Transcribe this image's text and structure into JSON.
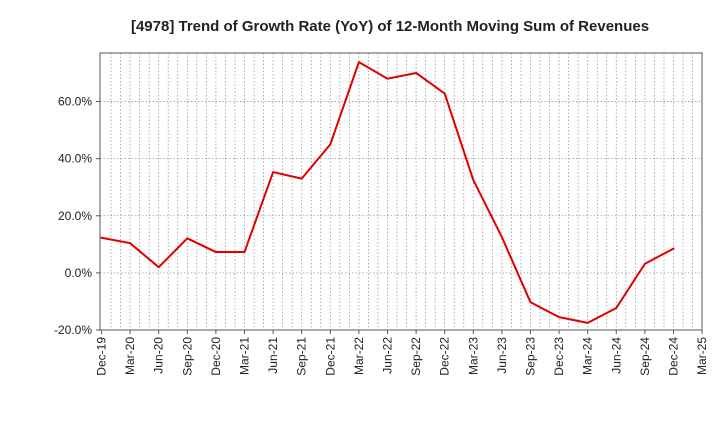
{
  "chart_data": {
    "type": "line",
    "title": "[4978]  Trend of Growth Rate (YoY) of 12-Month Moving Sum of Revenues",
    "xlabel": "",
    "ylabel": "",
    "y_unit": "%",
    "ylim": [
      -20,
      77
    ],
    "yticks": [
      -20,
      0,
      20,
      40,
      60
    ],
    "ytick_labels": [
      "-20.0%",
      "0.0%",
      "20.0%",
      "40.0%",
      "60.0%"
    ],
    "x_tick_labels": [
      "Dec-19",
      "Mar-20",
      "Jun-20",
      "Sep-20",
      "Dec-20",
      "Mar-21",
      "Jun-21",
      "Sep-21",
      "Dec-21",
      "Mar-22",
      "Jun-22",
      "Sep-22",
      "Dec-22",
      "Mar-23",
      "Jun-23",
      "Sep-23",
      "Dec-23",
      "Mar-24",
      "Jun-24",
      "Sep-24",
      "Dec-24",
      "Mar-25"
    ],
    "grid": true,
    "grid_style": "dotted",
    "series": [
      {
        "color": "#e00000",
        "points": [
          {
            "x": "Dec-19",
            "y": 12.3
          },
          {
            "x": "Mar-20",
            "y": 10.4
          },
          {
            "x": "Jun-20",
            "y": 2.0
          },
          {
            "x": "Sep-20",
            "y": 12.1
          },
          {
            "x": "Dec-20",
            "y": 7.3
          },
          {
            "x": "Mar-21",
            "y": 7.3
          },
          {
            "x": "Jun-21",
            "y": 35.3
          },
          {
            "x": "Sep-21",
            "y": 33.0
          },
          {
            "x": "Dec-21",
            "y": 45.0
          },
          {
            "x": "Mar-22",
            "y": 73.8
          },
          {
            "x": "Jun-22",
            "y": 68.0
          },
          {
            "x": "Sep-22",
            "y": 70.0
          },
          {
            "x": "Dec-22",
            "y": 62.8
          },
          {
            "x": "Mar-23",
            "y": 32.5
          },
          {
            "x": "Jun-23",
            "y": 12.5
          },
          {
            "x": "Sep-23",
            "y": -10.3
          },
          {
            "x": "Dec-23",
            "y": -15.5
          },
          {
            "x": "Mar-24",
            "y": -17.5
          },
          {
            "x": "Jun-24",
            "y": -12.3
          },
          {
            "x": "Sep-24",
            "y": 3.2
          },
          {
            "x": "Dec-24",
            "y": 8.5
          }
        ]
      }
    ]
  }
}
